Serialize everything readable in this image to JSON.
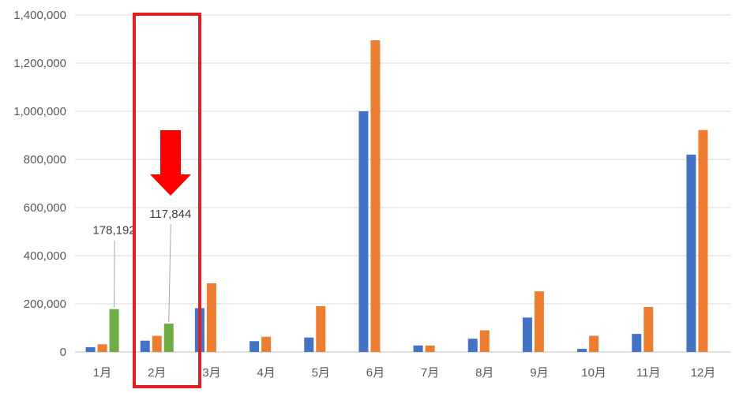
{
  "chart_data": {
    "type": "bar",
    "categories": [
      "1月",
      "2月",
      "3月",
      "4月",
      "5月",
      "6月",
      "7月",
      "8月",
      "9月",
      "10月",
      "11月",
      "12月"
    ],
    "series": [
      {
        "color": "#4472c4",
        "values": [
          20000,
          47000,
          182000,
          45000,
          60000,
          1000000,
          27000,
          55000,
          143000,
          13000,
          75000,
          820000
        ]
      },
      {
        "color": "#ed7d31",
        "values": [
          32000,
          67000,
          285000,
          63000,
          190000,
          1295000,
          27000,
          90000,
          252000,
          67000,
          187000,
          922000
        ]
      },
      {
        "color": "#70ad47",
        "values": [
          178192,
          117844,
          null,
          null,
          null,
          null,
          null,
          null,
          null,
          null,
          null,
          null
        ]
      }
    ],
    "ylim": [
      0,
      1400000
    ],
    "yticks": [
      0,
      200000,
      400000,
      600000,
      800000,
      1000000,
      1200000,
      1400000
    ],
    "ytick_labels": [
      "0",
      "200,000",
      "400,000",
      "600,000",
      "800,000",
      "1,000,000",
      "1,200,000",
      "1,400,000"
    ],
    "grid": true,
    "legend": false,
    "data_labels": [
      {
        "series": 2,
        "category": 0,
        "text": "178,192"
      },
      {
        "series": 2,
        "category": 1,
        "text": "117,844"
      }
    ],
    "annotations": {
      "highlight_box": {
        "category": "2月",
        "color": "#e02020"
      },
      "arrow": {
        "direction": "down",
        "color": "#ff0000"
      }
    }
  }
}
